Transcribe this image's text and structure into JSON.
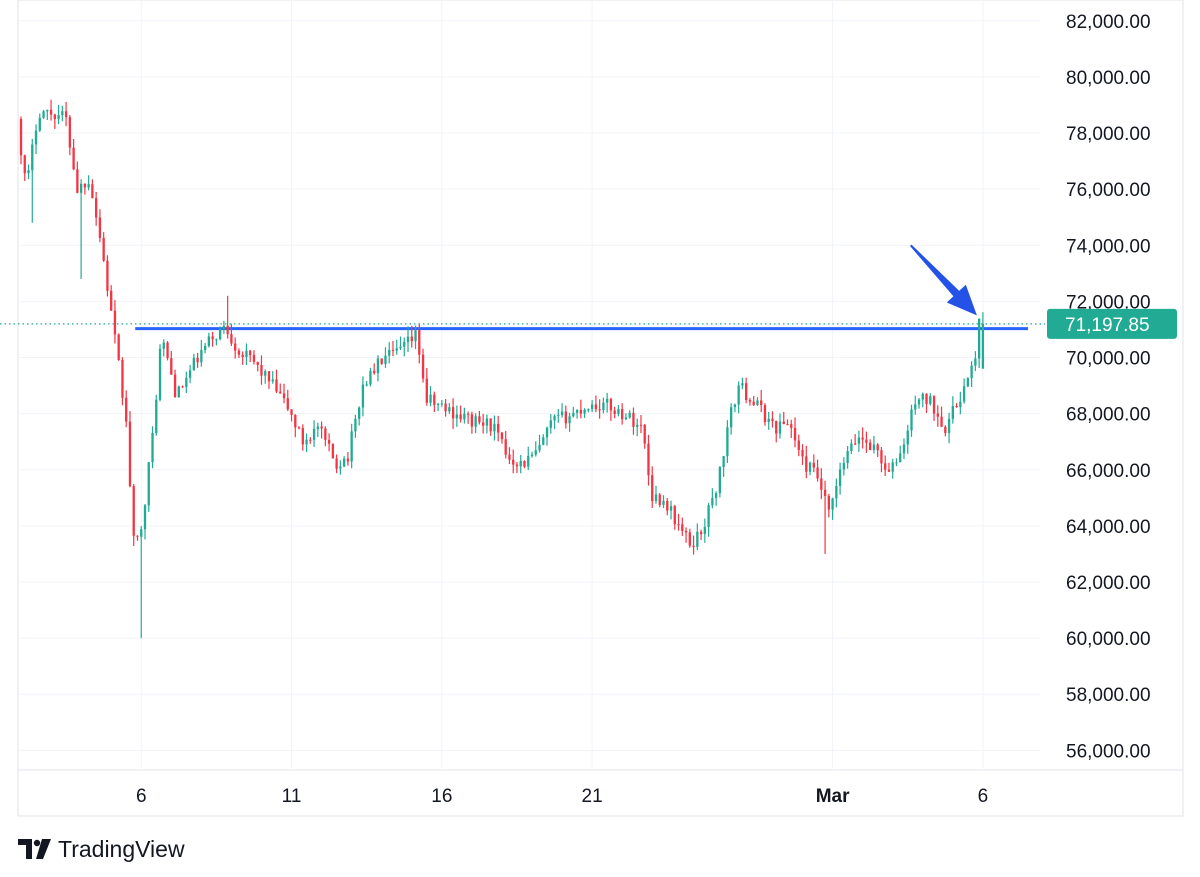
{
  "brand": {
    "name": "TradingView",
    "logo_icon": "tradingview-logo-icon"
  },
  "colors": {
    "up": "#22ab94",
    "down": "#f23645",
    "level_line": "#2962ff",
    "arrow": "#2452e6",
    "last_price_bg": "#22ab94",
    "grid": "#f0f3fa",
    "dotted_price": "#22ab94"
  },
  "chart_data": {
    "type": "candlestick",
    "title": "",
    "xlabel": "",
    "ylabel": "",
    "ylim": [
      55300,
      82100
    ],
    "y_ticks": [
      82000,
      80000,
      78000,
      76000,
      74000,
      72000,
      70000,
      68000,
      66000,
      64000,
      62000,
      60000,
      58000,
      56000
    ],
    "y_tick_labels": [
      "82,000.00",
      "80,000.00",
      "78,000.00",
      "76,000.00",
      "74,000.00",
      "72,000.00",
      "70,000.00",
      "68,000.00",
      "66,000.00",
      "64,000.00",
      "62,000.00",
      "60,000.00",
      "58,000.00",
      "56,000.00"
    ],
    "x_ticks": [
      {
        "label": "6",
        "day": 6,
        "bold": false
      },
      {
        "label": "11",
        "day": 11,
        "bold": false
      },
      {
        "label": "16",
        "day": 16,
        "bold": false
      },
      {
        "label": "21",
        "day": 21,
        "bold": false
      },
      {
        "label": "Mar",
        "day": 29,
        "bold": true
      },
      {
        "label": "6",
        "day": 34,
        "bold": false
      }
    ],
    "xlim_days": [
      1.9,
      35.9
    ],
    "candles_per_day": 8,
    "price_path": [
      [
        2.0,
        78500
      ],
      [
        2.3,
        76000
      ],
      [
        2.7,
        78800
      ],
      [
        3.2,
        78700
      ],
      [
        3.6,
        78600
      ],
      [
        4.0,
        76000
      ],
      [
        4.4,
        76400
      ],
      [
        4.8,
        74000
      ],
      [
        5.2,
        71000
      ],
      [
        5.6,
        68000
      ],
      [
        5.9,
        63000
      ],
      [
        6.2,
        64500
      ],
      [
        6.5,
        67200
      ],
      [
        6.8,
        70800
      ],
      [
        7.3,
        68600
      ],
      [
        7.9,
        69800
      ],
      [
        8.4,
        70600
      ],
      [
        8.9,
        71100
      ],
      [
        9.4,
        70200
      ],
      [
        9.9,
        69800
      ],
      [
        10.5,
        69000
      ],
      [
        11.0,
        68200
      ],
      [
        11.5,
        67000
      ],
      [
        12.0,
        67500
      ],
      [
        12.6,
        66200
      ],
      [
        13.0,
        66500
      ],
      [
        13.5,
        69000
      ],
      [
        14.1,
        69900
      ],
      [
        14.7,
        70200
      ],
      [
        15.3,
        70800
      ],
      [
        15.6,
        68500
      ],
      [
        16.4,
        68100
      ],
      [
        17.2,
        67700
      ],
      [
        17.8,
        67600
      ],
      [
        18.3,
        66500
      ],
      [
        18.8,
        66200
      ],
      [
        19.3,
        66600
      ],
      [
        19.8,
        67700
      ],
      [
        20.5,
        68000
      ],
      [
        21.0,
        68300
      ],
      [
        21.6,
        68300
      ],
      [
        22.3,
        67900
      ],
      [
        22.8,
        67500
      ],
      [
        23.1,
        65100
      ],
      [
        23.6,
        64800
      ],
      [
        24.0,
        64000
      ],
      [
        24.4,
        63300
      ],
      [
        24.8,
        63900
      ],
      [
        25.3,
        65500
      ],
      [
        25.7,
        67800
      ],
      [
        26.0,
        69000
      ],
      [
        26.6,
        68300
      ],
      [
        27.2,
        67500
      ],
      [
        27.7,
        67700
      ],
      [
        28.1,
        66300
      ],
      [
        28.6,
        65800
      ],
      [
        29.0,
        64400
      ],
      [
        29.5,
        66300
      ],
      [
        30.0,
        67200
      ],
      [
        30.6,
        66700
      ],
      [
        31.0,
        65800
      ],
      [
        31.5,
        66900
      ],
      [
        31.9,
        68600
      ],
      [
        32.4,
        68400
      ],
      [
        32.9,
        67500
      ],
      [
        33.4,
        68700
      ],
      [
        33.8,
        69600
      ],
      [
        34.0,
        71200
      ]
    ],
    "wicks": [
      {
        "day": 5.95,
        "low": 60000
      },
      {
        "day": 4.0,
        "low": 72800
      },
      {
        "day": 2.4,
        "low": 74800
      },
      {
        "day": 8.9,
        "high": 72200
      },
      {
        "day": 28.8,
        "low": 63000
      }
    ],
    "level_line": {
      "price": 71030,
      "start_day": 5.8,
      "end_day": 35.5
    },
    "last_price": 71197.85,
    "last_price_label": "71,197.85",
    "arrow": {
      "from_day": 31.6,
      "from_price": 74000,
      "to_day": 33.8,
      "to_price": 71500
    }
  }
}
